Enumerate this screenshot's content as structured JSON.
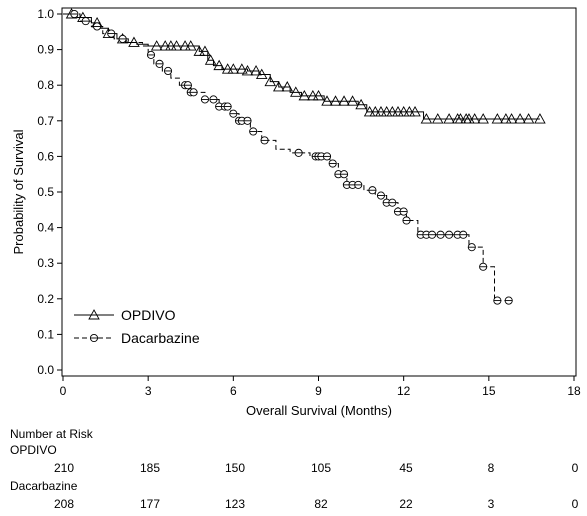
{
  "chart_data": {
    "type": "line",
    "xlabel": "Overall Survival (Months)",
    "ylabel": "Probability of Survival",
    "xlim": [
      0,
      18
    ],
    "ylim": [
      0.0,
      1.0
    ],
    "x_ticks": [
      0,
      3,
      6,
      9,
      12,
      15,
      18
    ],
    "x_tick_labels": [
      "0",
      "3",
      "6",
      "9",
      "12",
      "15",
      "18"
    ],
    "y_ticks": [
      0.0,
      0.1,
      0.2,
      0.3,
      0.4,
      0.5,
      0.6,
      0.7,
      0.8,
      0.9,
      1.0
    ],
    "y_tick_labels": [
      "0.0",
      "0.1",
      "0.2",
      "0.3",
      "0.4",
      "0.5",
      "0.6",
      "0.7",
      "0.8",
      "0.9",
      "1.0"
    ],
    "legend_position": "lower-left",
    "grid": false,
    "series": [
      {
        "name": "OPDIVO",
        "line_style": "solid",
        "marker": "triangle",
        "color": "#000000",
        "steps": [
          [
            0,
            1.0
          ],
          [
            0.5,
            0.99
          ],
          [
            1.0,
            0.975
          ],
          [
            1.3,
            0.96
          ],
          [
            1.6,
            0.945
          ],
          [
            1.9,
            0.93
          ],
          [
            2.2,
            0.92
          ],
          [
            2.6,
            0.915
          ],
          [
            3.0,
            0.91
          ],
          [
            4.8,
            0.895
          ],
          [
            5.1,
            0.87
          ],
          [
            5.3,
            0.855
          ],
          [
            5.6,
            0.845
          ],
          [
            6.5,
            0.84
          ],
          [
            6.9,
            0.83
          ],
          [
            7.3,
            0.81
          ],
          [
            7.6,
            0.795
          ],
          [
            8.0,
            0.78
          ],
          [
            8.4,
            0.77
          ],
          [
            9.2,
            0.755
          ],
          [
            10.4,
            0.745
          ],
          [
            10.7,
            0.725
          ],
          [
            12.7,
            0.705
          ],
          [
            16.8,
            0.705
          ]
        ],
        "censor_x": [
          0.3,
          0.7,
          1.2,
          1.6,
          2.1,
          2.5,
          3.3,
          3.6,
          3.8,
          4.0,
          4.3,
          4.5,
          4.8,
          5.0,
          5.2,
          5.5,
          5.8,
          6.0,
          6.3,
          6.5,
          6.8,
          7.0,
          7.3,
          7.6,
          7.9,
          8.2,
          8.5,
          8.8,
          9.0,
          9.3,
          9.6,
          9.9,
          10.2,
          10.5,
          10.8,
          11.0,
          11.2,
          11.4,
          11.6,
          11.8,
          12.0,
          12.2,
          12.4,
          12.8,
          13.2,
          13.6,
          13.9,
          14.0,
          14.2,
          14.3,
          14.5,
          14.8,
          15.3,
          15.6,
          15.8,
          16.1,
          16.4,
          16.8
        ],
        "risk": [
          210,
          185,
          150,
          105,
          45,
          8,
          0
        ]
      },
      {
        "name": "Dacarbazine",
        "line_style": "dashed",
        "marker": "circle",
        "color": "#000000",
        "steps": [
          [
            0,
            1.0
          ],
          [
            0.6,
            0.98
          ],
          [
            1.0,
            0.965
          ],
          [
            1.4,
            0.945
          ],
          [
            1.8,
            0.93
          ],
          [
            2.3,
            0.92
          ],
          [
            2.8,
            0.91
          ],
          [
            3.0,
            0.885
          ],
          [
            3.2,
            0.86
          ],
          [
            3.5,
            0.84
          ],
          [
            3.8,
            0.82
          ],
          [
            4.1,
            0.8
          ],
          [
            4.5,
            0.78
          ],
          [
            5.0,
            0.76
          ],
          [
            5.5,
            0.74
          ],
          [
            5.9,
            0.72
          ],
          [
            6.2,
            0.7
          ],
          [
            6.6,
            0.67
          ],
          [
            7.0,
            0.645
          ],
          [
            7.5,
            0.62
          ],
          [
            8.0,
            0.61
          ],
          [
            8.7,
            0.6
          ],
          [
            9.4,
            0.58
          ],
          [
            9.7,
            0.55
          ],
          [
            10.0,
            0.52
          ],
          [
            10.6,
            0.505
          ],
          [
            11.0,
            0.49
          ],
          [
            11.4,
            0.47
          ],
          [
            11.8,
            0.445
          ],
          [
            12.1,
            0.42
          ],
          [
            12.5,
            0.38
          ],
          [
            14.3,
            0.345
          ],
          [
            14.8,
            0.29
          ],
          [
            15.2,
            0.195
          ],
          [
            15.7,
            0.195
          ]
        ],
        "censor_x": [
          0.4,
          0.8,
          1.2,
          1.7,
          2.1,
          3.1,
          3.4,
          3.7,
          4.3,
          4.4,
          4.5,
          4.6,
          5.0,
          5.3,
          5.5,
          5.7,
          5.8,
          6.0,
          6.2,
          6.3,
          6.5,
          6.7,
          7.1,
          8.3,
          8.9,
          9.0,
          9.1,
          9.3,
          9.5,
          9.7,
          9.9,
          10.0,
          10.2,
          10.4,
          10.9,
          11.2,
          11.4,
          11.6,
          11.8,
          12.0,
          12.1,
          12.6,
          12.8,
          13.0,
          13.3,
          13.6,
          13.9,
          14.1,
          14.4,
          14.8,
          15.3,
          15.7
        ],
        "risk": [
          208,
          177,
          123,
          82,
          22,
          3,
          0
        ]
      }
    ]
  },
  "risk_table": {
    "title": "Number at Risk",
    "rows": [
      {
        "label": "OPDIVO",
        "values": [
          "210",
          "185",
          "150",
          "105",
          "45",
          "8",
          "0"
        ]
      },
      {
        "label": "Dacarbazine",
        "values": [
          "208",
          "177",
          "123",
          "82",
          "22",
          "3",
          "0"
        ]
      }
    ]
  }
}
